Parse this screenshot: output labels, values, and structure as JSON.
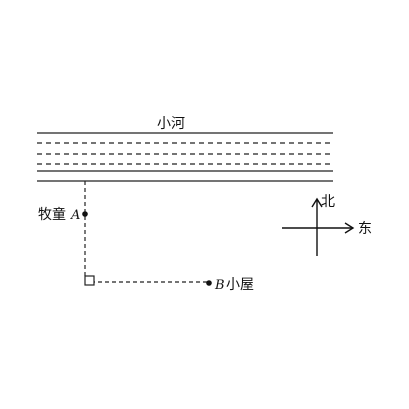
{
  "river": {
    "label": "小河"
  },
  "herder": {
    "name": "牧童",
    "point": "A"
  },
  "house": {
    "point": "B",
    "name": "小屋"
  },
  "compass": {
    "north": "北",
    "east": "东"
  }
}
